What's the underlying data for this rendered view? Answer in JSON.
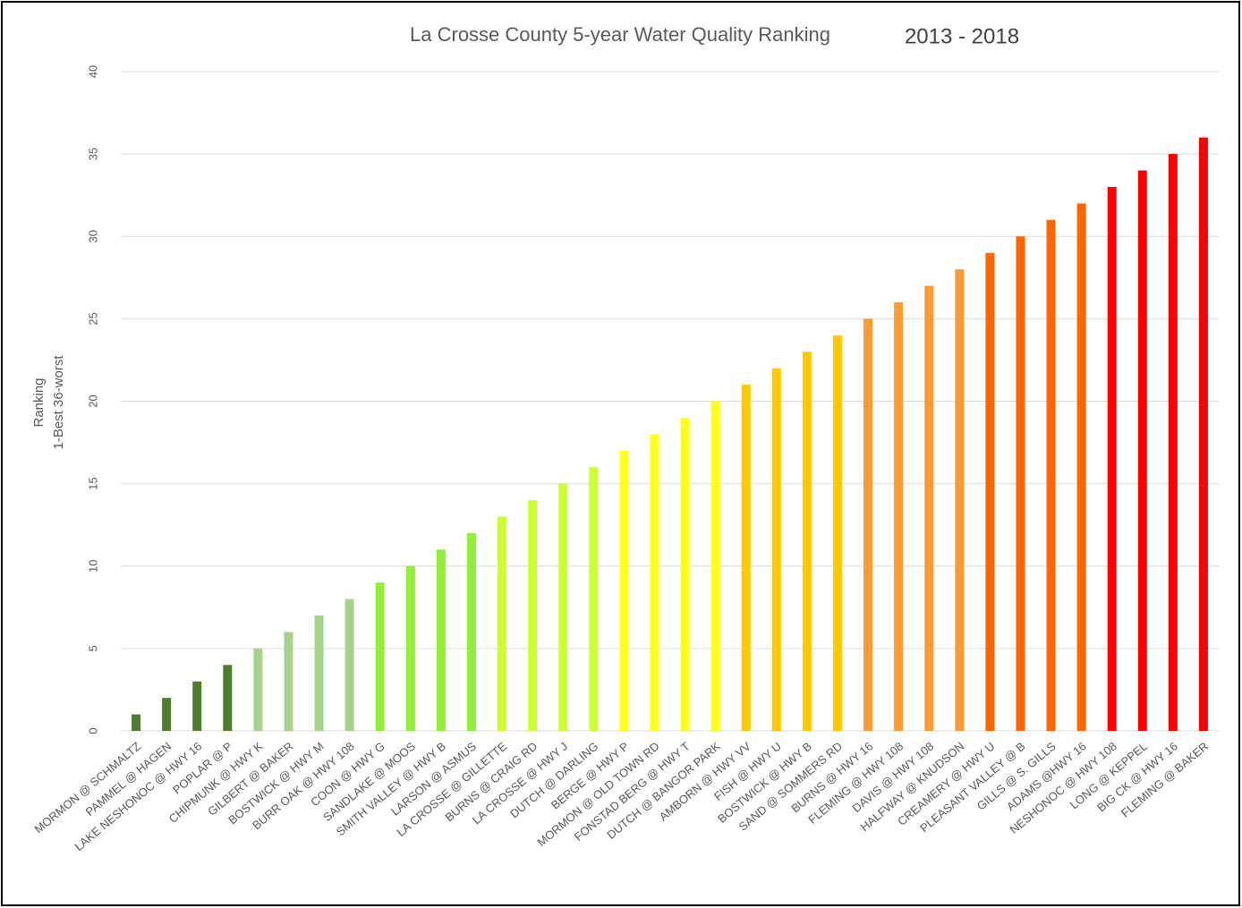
{
  "chart_data": {
    "type": "bar",
    "title": "La Crosse County 5-year Water Quality Ranking",
    "subtitle": "2013 - 2018",
    "ylabel": [
      "Ranking",
      "1-Best 36-worst"
    ],
    "categories": [
      "MORMON @ SCHMALTZ",
      "PAMMEL @ HAGEN",
      "LAKE NESHONOC @ HWY 16",
      "POPLAR @ P",
      "CHIPMUNK @ HWY K",
      "GILBERT @ BAKER",
      "BOSTWICK @ HWY M",
      "BURR OAK @ HWY 108",
      "COON @ HWY G",
      "SANDLAKE @ MOOS",
      "SMITH VALLEY @ HWY B",
      "LARSON @ ASMUS",
      "LA CROSSE @ GILLETTE",
      "BURNS @ CRAIG RD",
      "LA CROSSE @ HWY J",
      "DUTCH @ DARLING",
      "BERGE @ HWY P",
      "MORMON @ OLD TOWN RD",
      "FONSTAD BERG @ HWY T",
      "DUTCH @ BANGOR PARK",
      "AMBORN @ HWY VV",
      "FISH @ HWY U",
      "BOSTWICK @ HWY B",
      "SAND @ SOMMERS RD",
      "BURNS @ HWY 16",
      "FLEMING @ HWY 108",
      "DAVIS @ HWY 108",
      "HALFWAY @ KNUDSON",
      "CREAMERY @ HWY U",
      "PLEASANT VALLEY @ B",
      "GILLS @ S. GILLS",
      "ADAMS @HWY 16",
      "NESHONOC @ HWY 108",
      "LONG @ KEPPEL",
      "BIG CK @ HWY 16",
      "FLEMING @ BAKER"
    ],
    "values": [
      1,
      2,
      3,
      4,
      5,
      6,
      7,
      8,
      9,
      10,
      11,
      12,
      13,
      14,
      15,
      16,
      17,
      18,
      19,
      20,
      21,
      22,
      23,
      24,
      25,
      26,
      27,
      28,
      29,
      30,
      31,
      32,
      33,
      34,
      35,
      36
    ],
    "colors": [
      "#4f7d2f",
      "#4f7d2f",
      "#4f7d2f",
      "#4f7d2f",
      "#a9d18e",
      "#a9d18e",
      "#a9d18e",
      "#a9d18e",
      "#92ee3a",
      "#92ee3a",
      "#92ee3a",
      "#92ee3a",
      "#ccff33",
      "#ccff33",
      "#ccff33",
      "#ccff33",
      "#ffff1a",
      "#ffff1a",
      "#ffff1a",
      "#ffff1a",
      "#ffc800",
      "#ffc800",
      "#ffc800",
      "#ffc800",
      "#ff9933",
      "#ff9933",
      "#ff9933",
      "#ff9933",
      "#ff6600",
      "#ff6600",
      "#ff6600",
      "#ff6600",
      "#ff0000",
      "#ff0000",
      "#ff0000",
      "#ff0000"
    ],
    "ylim": [
      0,
      40
    ],
    "yticks": [
      0,
      5,
      10,
      15,
      20,
      25,
      30,
      35,
      40
    ],
    "grid": true
  }
}
